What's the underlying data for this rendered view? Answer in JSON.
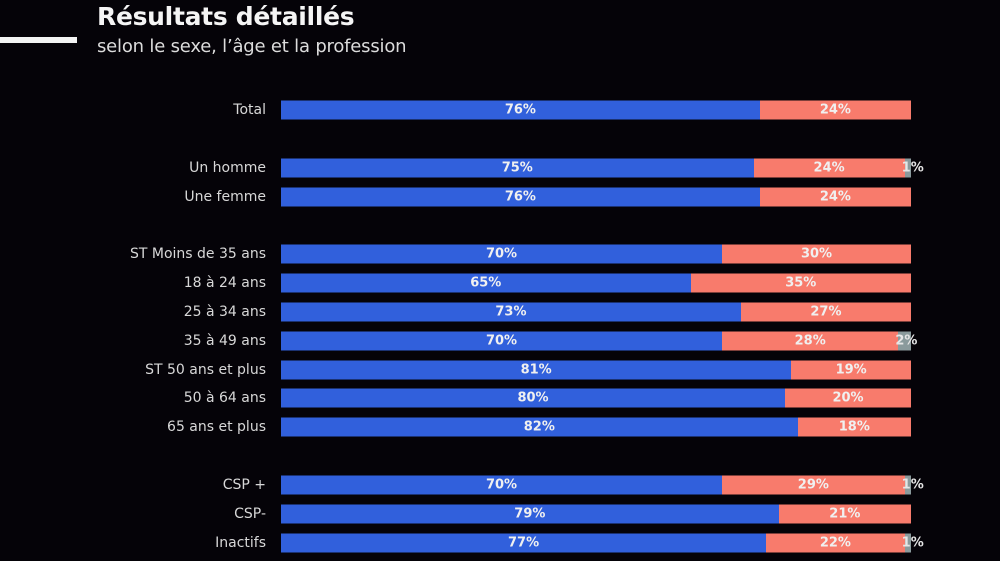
{
  "header": {
    "title": "Résultats détaillés",
    "subtitle": "selon le sexe, l’âge et la profession"
  },
  "colors": {
    "series_1": "#3160dc",
    "series_2": "#f87b6c",
    "series_3": "#8a9a9c",
    "background": "#050308"
  },
  "chart_data": {
    "type": "bar",
    "orientation": "horizontal",
    "stacked": true,
    "title": "Résultats détaillés",
    "subtitle": "selon le sexe, l’âge et la profession",
    "xlabel": "",
    "ylabel": "",
    "xlim": [
      0,
      100
    ],
    "grid": false,
    "legend": "none",
    "groups": [
      {
        "categories": [
          "Total"
        ]
      },
      {
        "categories": [
          "Un homme",
          "Une femme"
        ]
      },
      {
        "categories": [
          "ST Moins de 35 ans",
          "18 à 24 ans",
          "25 à 34 ans",
          "35 à 49 ans",
          "ST 50 ans et plus",
          "50 à 64 ans",
          "65 ans et plus"
        ]
      },
      {
        "categories": [
          "CSP +",
          "CSP-",
          "Inactifs"
        ]
      }
    ],
    "categories": [
      "Total",
      "Un homme",
      "Une femme",
      "ST Moins de 35 ans",
      "18 à 24 ans",
      "25 à 34 ans",
      "35 à 49 ans",
      "ST 50 ans et plus",
      "50 à 64 ans",
      "65 ans et plus",
      "CSP +",
      "CSP-",
      "Inactifs"
    ],
    "series": [
      {
        "name": "series_1",
        "values": [
          76,
          75,
          76,
          70,
          65,
          73,
          70,
          81,
          80,
          82,
          70,
          79,
          77
        ],
        "labels": [
          "76%",
          "75%",
          "76%",
          "70%",
          "65%",
          "73%",
          "70%",
          "81%",
          "80%",
          "82%",
          "70%",
          "79%",
          "77%"
        ]
      },
      {
        "name": "series_2",
        "values": [
          24,
          24,
          24,
          30,
          35,
          27,
          28,
          19,
          20,
          18,
          29,
          21,
          22
        ],
        "labels": [
          "24%",
          "24%",
          "24%",
          "30%",
          "35%",
          "27%",
          "28%",
          "19%",
          "20%",
          "18%",
          "29%",
          "21%",
          "22%"
        ]
      },
      {
        "name": "series_3",
        "values": [
          0,
          1,
          0,
          0,
          0,
          0,
          2,
          0,
          0,
          0,
          1,
          0,
          1
        ],
        "labels": [
          "",
          "1%",
          "",
          "",
          "",
          "",
          "2%",
          "",
          "",
          "",
          "1%",
          "",
          "1%"
        ]
      }
    ]
  }
}
